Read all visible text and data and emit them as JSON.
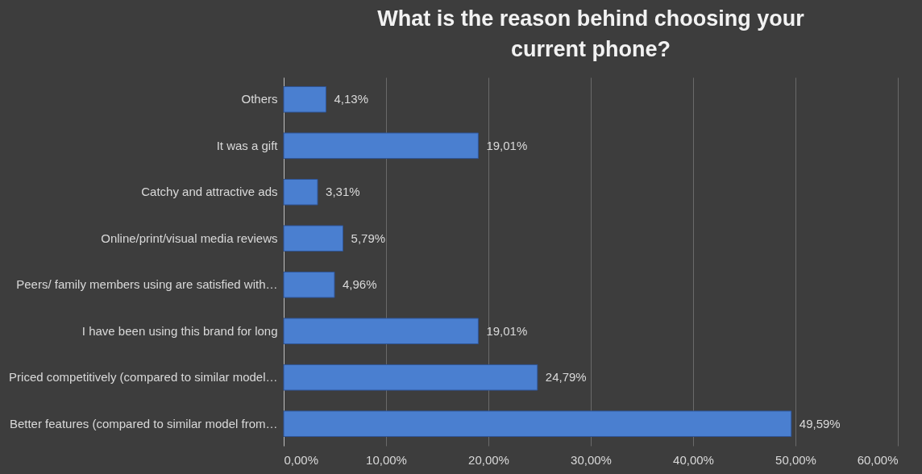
{
  "chart_data": {
    "type": "bar",
    "orientation": "horizontal",
    "title": "What is the reason behind choosing your current phone?",
    "categories": [
      "Others",
      "It was a gift",
      "Catchy and attractive ads",
      "Online/print/visual media reviews",
      "Peers/ family members using are satisfied with…",
      "I have been using this brand for long",
      "Priced competitively (compared to similar model…",
      "Better features (compared to similar model from…"
    ],
    "values": [
      4.13,
      19.01,
      3.31,
      5.79,
      4.96,
      19.01,
      24.79,
      49.59
    ],
    "value_labels": [
      "4,13%",
      "19,01%",
      "3,31%",
      "5,79%",
      "4,96%",
      "19,01%",
      "24,79%",
      "49,59%"
    ],
    "color": "#4a7fd0",
    "xlim": [
      0,
      60
    ],
    "xticks": [
      {
        "value": 0,
        "label": "0,00%"
      },
      {
        "value": 10,
        "label": "10,00%"
      },
      {
        "value": 20,
        "label": "20,00%"
      },
      {
        "value": 30,
        "label": "30,00%"
      },
      {
        "value": 40,
        "label": "40,00%"
      },
      {
        "value": 50,
        "label": "50,00%"
      },
      {
        "value": 60,
        "label": "60,00%"
      }
    ],
    "grid": "x"
  }
}
